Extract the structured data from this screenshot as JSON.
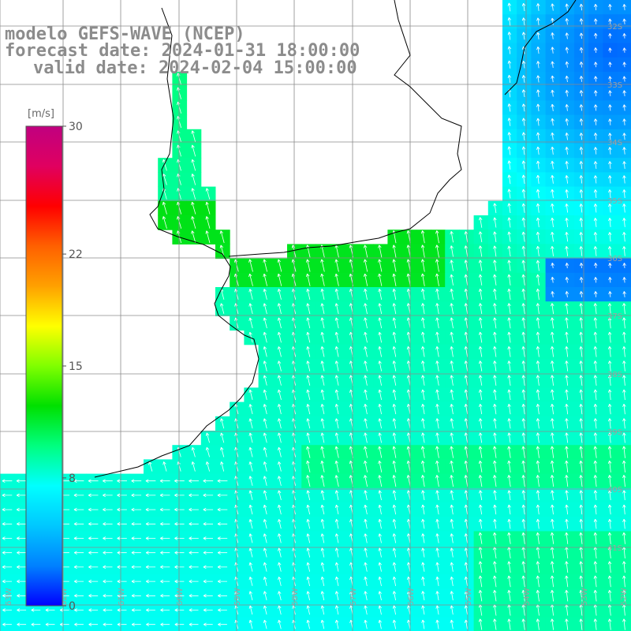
{
  "title": {
    "model": "modelo GEFS-WAVE (NCEP)",
    "forecast": "forecast date: 2024-01-31 18:00:00",
    "valid": "valid date: 2024-02-04 15:00:00"
  },
  "colorbar": {
    "unit": "[m/s]",
    "ticks": [
      "30",
      "22",
      "15",
      "8",
      "0"
    ],
    "colors": [
      "#0000ff",
      "#0080ff",
      "#00c8ff",
      "#00ffff",
      "#00ff80",
      "#00e000",
      "#80ff00",
      "#ffff00",
      "#ffa000",
      "#ff6000",
      "#ff0000",
      "#e00060",
      "#c00080"
    ]
  },
  "map": {
    "lat_labels": [
      "32S",
      "33S",
      "34S",
      "35S",
      "36S",
      "37S",
      "38S",
      "39S",
      "40S",
      "41S"
    ],
    "lon_labels": [
      "63W",
      "62W",
      "61W",
      "60W",
      "59W",
      "58W",
      "57W",
      "56W",
      "55W",
      "54W",
      "53W",
      "52W"
    ],
    "colors": {
      "land": "#ffffff",
      "coast": "#000000",
      "grid": "#9a9a9a",
      "arrow": "#ffffff",
      "wind_low": "#0033ff",
      "wind_mid": "#00ccff",
      "wind_high": "#00ff66"
    }
  }
}
